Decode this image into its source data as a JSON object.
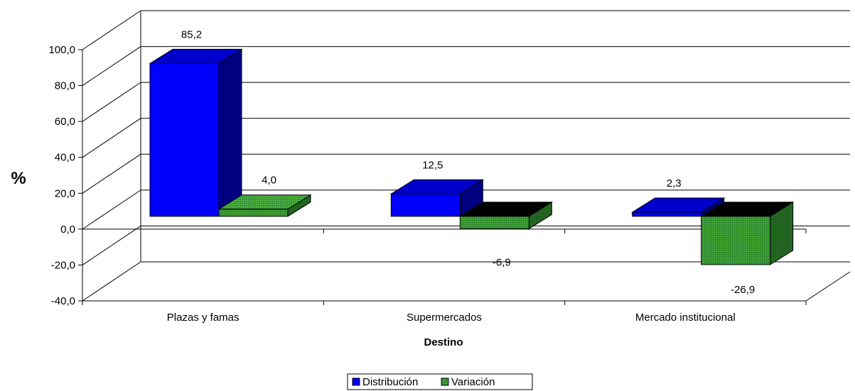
{
  "chart_data": {
    "type": "bar",
    "categories": [
      "Plazas y famas",
      "Supermercados",
      "Mercado institucional"
    ],
    "series": [
      {
        "name": "Distribución",
        "values": [
          85.2,
          12.5,
          2.3
        ],
        "color": "#0000FF",
        "labels": [
          "85,2",
          "12,5",
          "2,3"
        ]
      },
      {
        "name": "Variación",
        "values": [
          4.0,
          -6.9,
          -26.9
        ],
        "color": "#339933",
        "labels": [
          "4,0",
          "-6,9",
          "-26,9"
        ]
      }
    ],
    "xlabel": "Destino",
    "ylabel": "%",
    "ylim": [
      -40,
      100
    ],
    "yticks": [
      "-40,0",
      "-20,0",
      "0,0",
      "20,0",
      "40,0",
      "60,0",
      "80,0",
      "100,0"
    ],
    "grid": true,
    "legend": "bottom-center",
    "style": "3d"
  }
}
